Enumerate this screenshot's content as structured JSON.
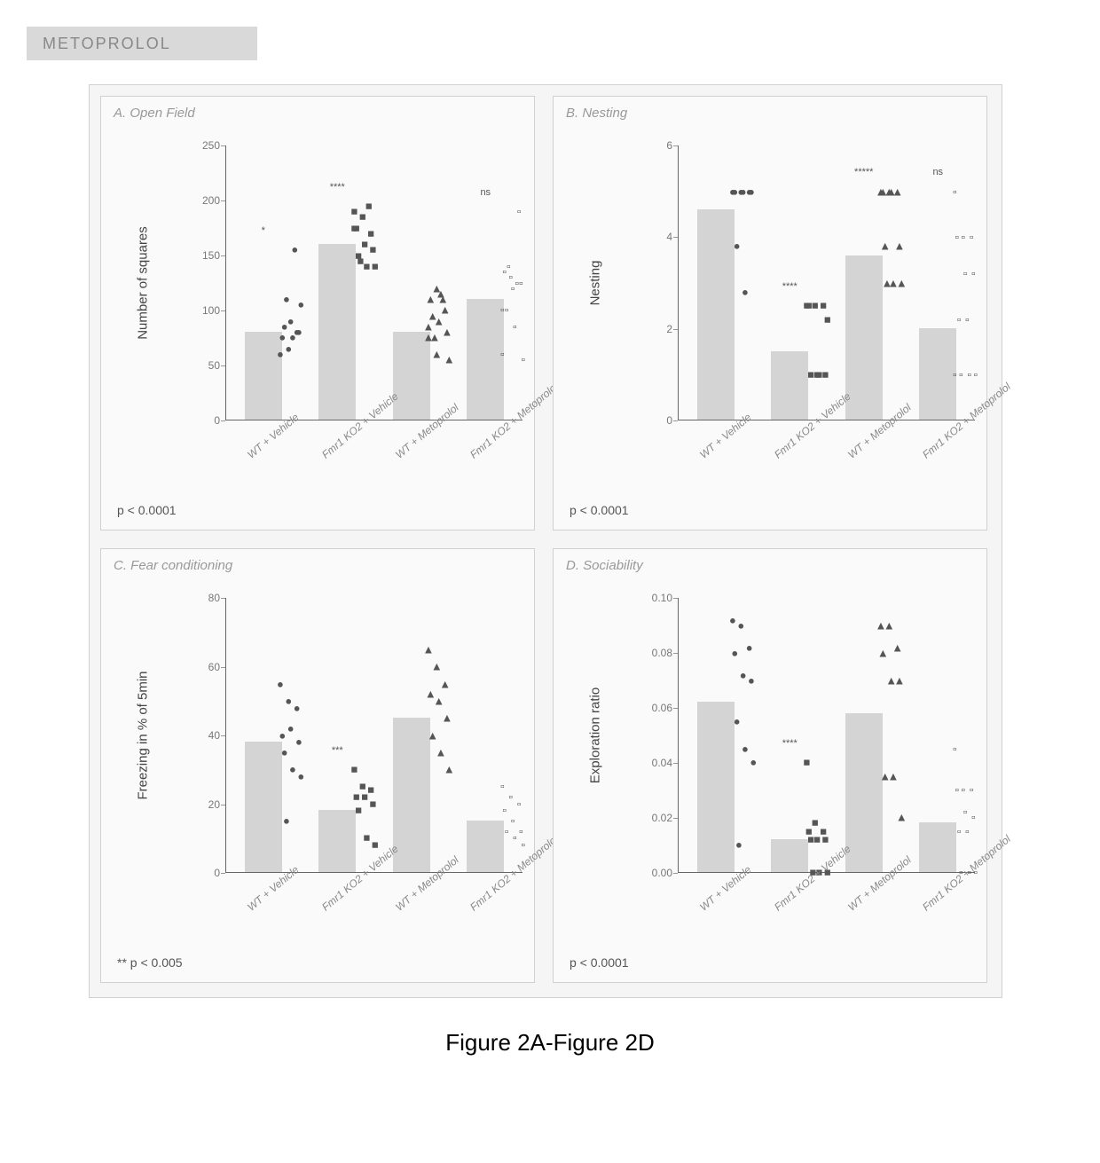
{
  "header": {
    "title": "METOPROLOL"
  },
  "caption": "Figure 2A-Figure 2D",
  "common": {
    "categories": [
      "WT + Vehicle",
      "Fmr1 KO2 + Vehicle",
      "WT + Metoprolol",
      "Fmr1 KO2 + Metoprolol"
    ],
    "bar_color": "#d4d4d4",
    "axis_color": "#666666",
    "tick_color": "#777777",
    "label_color": "#444444",
    "title_color": "#999999",
    "background_color": "#fafafa",
    "figure_background": "#f5f5f5",
    "markers": [
      "circle",
      "square",
      "triangle",
      "square-outline"
    ],
    "marker_color": "#555555",
    "label_fontsize": 15,
    "tick_fontsize": 12,
    "title_fontsize": 15
  },
  "panels": {
    "A": {
      "title": "A. Open Field",
      "ylabel": "Number of squares",
      "ylim": [
        0,
        250
      ],
      "ytick_step": 50,
      "yticks": [
        0,
        50,
        100,
        150,
        200,
        250
      ],
      "bar_means": [
        80,
        160,
        80,
        110
      ],
      "significance": [
        "*",
        "****",
        "",
        "ns"
      ],
      "p_text": "p < 0.0001",
      "points": [
        [
          60,
          65,
          80,
          75,
          90,
          80,
          85,
          75,
          105,
          110,
          155
        ],
        [
          190,
          185,
          170,
          175,
          160,
          155,
          150,
          140,
          140,
          145,
          195,
          175
        ],
        [
          75,
          60,
          100,
          110,
          90,
          80,
          95,
          115,
          55,
          75,
          110,
          85,
          120
        ],
        [
          100,
          130,
          190,
          135,
          120,
          125,
          100,
          85,
          55,
          140,
          125,
          60
        ]
      ]
    },
    "B": {
      "title": "B. Nesting",
      "ylabel": "Nesting",
      "ylim": [
        0,
        6
      ],
      "ytick_step": 2,
      "yticks": [
        0,
        2,
        4,
        6
      ],
      "bar_means": [
        4.6,
        1.5,
        3.6,
        2.0
      ],
      "significance": [
        "",
        "****",
        "*****",
        "ns"
      ],
      "p_text": "p < 0.0001",
      "points": [
        [
          5,
          5,
          5,
          5,
          5,
          5,
          3.8,
          2.8
        ],
        [
          2.5,
          2.5,
          2.5,
          2.5,
          1,
          1,
          1,
          1,
          2.2
        ],
        [
          5,
          5,
          5,
          5,
          5,
          3.8,
          3.8,
          3,
          3,
          3
        ],
        [
          5,
          4,
          4,
          4,
          3.2,
          3.2,
          2.2,
          2.2,
          1,
          1,
          1,
          1
        ]
      ]
    },
    "C": {
      "title": "C. Fear conditioning",
      "ylabel": "Freezing in % of 5min",
      "ylim": [
        0,
        80
      ],
      "ytick_step": 20,
      "yticks": [
        0,
        20,
        40,
        60,
        80
      ],
      "bar_means": [
        38,
        18,
        45,
        15
      ],
      "significance": [
        "",
        "***",
        "",
        ""
      ],
      "p_text": "** p < 0.005",
      "points": [
        [
          55,
          50,
          48,
          40,
          42,
          38,
          35,
          30,
          28,
          15
        ],
        [
          30,
          25,
          24,
          22,
          22,
          20,
          18,
          10,
          8
        ],
        [
          65,
          60,
          55,
          52,
          50,
          45,
          40,
          35,
          30
        ],
        [
          25,
          22,
          20,
          18,
          15,
          12,
          12,
          10,
          8
        ]
      ]
    },
    "D": {
      "title": "D. Sociability",
      "ylabel": "Exploration ratio",
      "ylim": [
        0,
        0.1
      ],
      "ytick_step": 0.02,
      "yticks": [
        0.0,
        0.02,
        0.04,
        0.06,
        0.08,
        0.1
      ],
      "bar_means": [
        0.062,
        0.012,
        0.058,
        0.018
      ],
      "significance": [
        "",
        "****",
        "",
        ""
      ],
      "p_text": "p < 0.0001",
      "points": [
        [
          0.092,
          0.09,
          0.082,
          0.08,
          0.072,
          0.07,
          0.055,
          0.045,
          0.04,
          0.01
        ],
        [
          0.04,
          0.018,
          0.015,
          0.015,
          0.012,
          0.012,
          0.012,
          0.0,
          0.0,
          0.0
        ],
        [
          0.09,
          0.09,
          0.082,
          0.08,
          0.07,
          0.07,
          0.035,
          0.035,
          0.02
        ],
        [
          0.045,
          0.03,
          0.03,
          0.03,
          0.022,
          0.02,
          0.015,
          0.015,
          0.0,
          0.0,
          0.0
        ]
      ]
    }
  }
}
